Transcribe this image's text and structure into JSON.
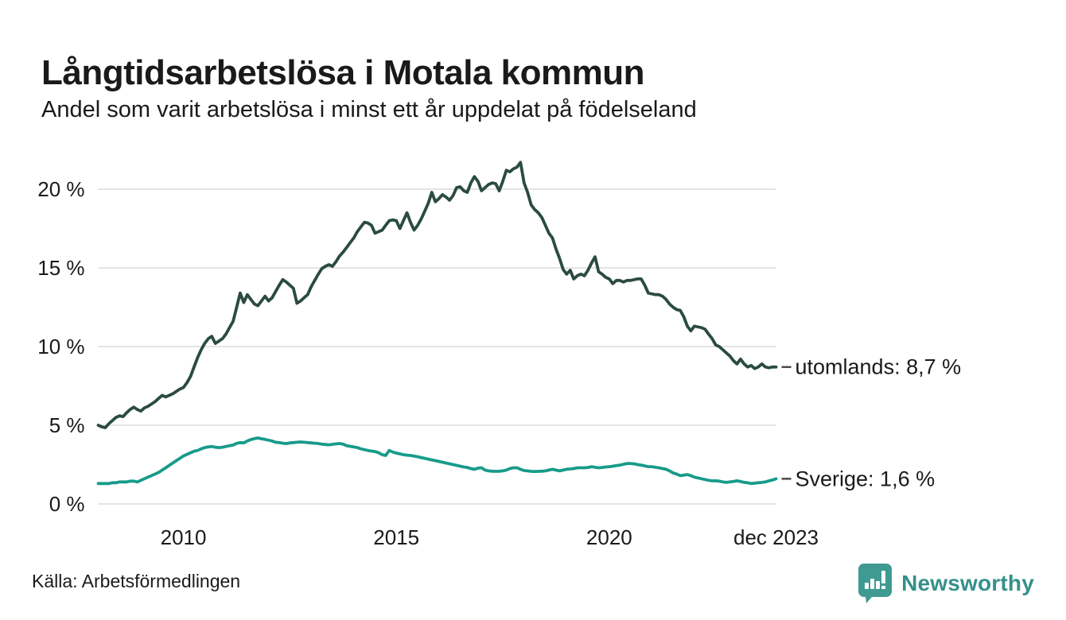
{
  "header": {
    "title": "Långtidsarbetslösa i Motala kommun",
    "subtitle": "Andel som varit arbetslösa i minst ett år uppdelat på födelseland"
  },
  "footer": {
    "source": "Källa: Arbetsförmedlingen",
    "brand": "Newsworthy"
  },
  "colors": {
    "ink": "#1a1a1a",
    "grid": "#e4e4e8",
    "dash": "#444444",
    "brand": "#3f9a91",
    "brand_text": "#35908a"
  },
  "chart_data": {
    "type": "line",
    "title": "Långtidsarbetslösa i Motala kommun",
    "subtitle": "Andel som varit arbetslösa i minst ett år uppdelat på födelseland",
    "xlabel": "",
    "ylabel": "",
    "x_start": "2008-01",
    "x_end": "2023-12",
    "frequency": "monthly",
    "grid": true,
    "legend_position": "end-of-line",
    "ylim": [
      0,
      22
    ],
    "y_ticks": [
      {
        "label": "0 %",
        "value": 0
      },
      {
        "label": "5 %",
        "value": 5
      },
      {
        "label": "10 %",
        "value": 10
      },
      {
        "label": "15 %",
        "value": 15
      },
      {
        "label": "20 %",
        "value": 20
      }
    ],
    "x_ticks": [
      {
        "label": "2010",
        "month_index": 24
      },
      {
        "label": "2015",
        "month_index": 84
      },
      {
        "label": "2020",
        "month_index": 144
      },
      {
        "label": "dec 2023",
        "month_index": 191
      }
    ],
    "series": [
      {
        "name": "utomlands",
        "end_label": "utomlands: 8,7 %",
        "last_value": 8.7,
        "color": "#2a4b42",
        "values": [
          5.0,
          4.9,
          4.85,
          5.1,
          5.3,
          5.5,
          5.6,
          5.55,
          5.8,
          6.0,
          6.15,
          6.0,
          5.9,
          6.1,
          6.2,
          6.35,
          6.5,
          6.7,
          6.9,
          6.8,
          6.9,
          7.0,
          7.15,
          7.3,
          7.4,
          7.7,
          8.1,
          8.7,
          9.3,
          9.8,
          10.2,
          10.5,
          10.65,
          10.2,
          10.35,
          10.5,
          10.8,
          11.2,
          11.6,
          12.5,
          13.4,
          12.8,
          13.3,
          13.0,
          12.7,
          12.6,
          12.9,
          13.2,
          12.9,
          13.1,
          13.5,
          13.9,
          14.25,
          14.1,
          13.9,
          13.7,
          12.75,
          12.9,
          13.1,
          13.3,
          13.8,
          14.2,
          14.6,
          14.95,
          15.1,
          15.2,
          15.1,
          15.4,
          15.75,
          16.0,
          16.3,
          16.6,
          16.9,
          17.3,
          17.6,
          17.9,
          17.85,
          17.7,
          17.2,
          17.3,
          17.4,
          17.7,
          18.0,
          18.05,
          18.0,
          17.5,
          18.0,
          18.5,
          17.9,
          17.4,
          17.7,
          18.1,
          18.6,
          19.1,
          19.8,
          19.2,
          19.4,
          19.65,
          19.5,
          19.3,
          19.6,
          20.1,
          20.15,
          19.9,
          19.8,
          20.4,
          20.8,
          20.5,
          19.9,
          20.1,
          20.3,
          20.4,
          20.35,
          19.9,
          20.5,
          21.2,
          21.1,
          21.3,
          21.4,
          21.7,
          20.4,
          19.8,
          19.0,
          18.7,
          18.5,
          18.2,
          17.7,
          17.2,
          16.9,
          16.2,
          15.6,
          14.9,
          14.6,
          14.85,
          14.3,
          14.5,
          14.6,
          14.5,
          14.85,
          15.3,
          15.7,
          14.75,
          14.6,
          14.4,
          14.3,
          14.0,
          14.2,
          14.2,
          14.1,
          14.2,
          14.2,
          14.25,
          14.3,
          14.3,
          13.9,
          13.4,
          13.35,
          13.3,
          13.3,
          13.2,
          13.0,
          12.7,
          12.5,
          12.35,
          12.3,
          11.9,
          11.3,
          11.0,
          11.3,
          11.25,
          11.2,
          11.1,
          10.8,
          10.5,
          10.1,
          10.0,
          9.8,
          9.6,
          9.4,
          9.1,
          8.9,
          9.2,
          8.9,
          8.7,
          8.8,
          8.6,
          8.7,
          8.9,
          8.7,
          8.65,
          8.7,
          8.7
        ]
      },
      {
        "name": "Sverige",
        "end_label": "Sverige: 1,6 %",
        "last_value": 1.6,
        "color": "#179b8b",
        "values": [
          1.3,
          1.3,
          1.3,
          1.3,
          1.35,
          1.35,
          1.4,
          1.4,
          1.4,
          1.45,
          1.45,
          1.4,
          1.5,
          1.6,
          1.7,
          1.8,
          1.9,
          2.0,
          2.15,
          2.3,
          2.45,
          2.6,
          2.75,
          2.9,
          3.05,
          3.15,
          3.25,
          3.35,
          3.4,
          3.5,
          3.58,
          3.62,
          3.65,
          3.6,
          3.58,
          3.6,
          3.65,
          3.7,
          3.74,
          3.85,
          3.9,
          3.88,
          4.0,
          4.09,
          4.15,
          4.19,
          4.14,
          4.1,
          4.05,
          4.0,
          3.92,
          3.9,
          3.86,
          3.84,
          3.88,
          3.9,
          3.92,
          3.94,
          3.92,
          3.9,
          3.88,
          3.86,
          3.84,
          3.8,
          3.78,
          3.76,
          3.79,
          3.82,
          3.84,
          3.8,
          3.7,
          3.66,
          3.62,
          3.58,
          3.5,
          3.45,
          3.4,
          3.36,
          3.33,
          3.25,
          3.13,
          3.08,
          3.4,
          3.3,
          3.23,
          3.18,
          3.13,
          3.1,
          3.08,
          3.04,
          3.0,
          2.95,
          2.9,
          2.85,
          2.8,
          2.75,
          2.7,
          2.65,
          2.6,
          2.55,
          2.5,
          2.45,
          2.4,
          2.35,
          2.32,
          2.25,
          2.2,
          2.28,
          2.3,
          2.15,
          2.1,
          2.08,
          2.07,
          2.08,
          2.1,
          2.15,
          2.25,
          2.3,
          2.3,
          2.2,
          2.12,
          2.1,
          2.07,
          2.06,
          2.07,
          2.08,
          2.1,
          2.15,
          2.2,
          2.15,
          2.1,
          2.15,
          2.2,
          2.22,
          2.25,
          2.3,
          2.3,
          2.3,
          2.32,
          2.37,
          2.33,
          2.3,
          2.32,
          2.35,
          2.37,
          2.4,
          2.44,
          2.47,
          2.52,
          2.57,
          2.57,
          2.55,
          2.5,
          2.47,
          2.42,
          2.37,
          2.37,
          2.33,
          2.3,
          2.25,
          2.2,
          2.1,
          1.97,
          1.9,
          1.8,
          1.83,
          1.87,
          1.8,
          1.7,
          1.65,
          1.6,
          1.55,
          1.5,
          1.47,
          1.47,
          1.45,
          1.4,
          1.37,
          1.4,
          1.43,
          1.47,
          1.43,
          1.37,
          1.35,
          1.3,
          1.32,
          1.35,
          1.37,
          1.4,
          1.47,
          1.52,
          1.6
        ]
      }
    ]
  }
}
